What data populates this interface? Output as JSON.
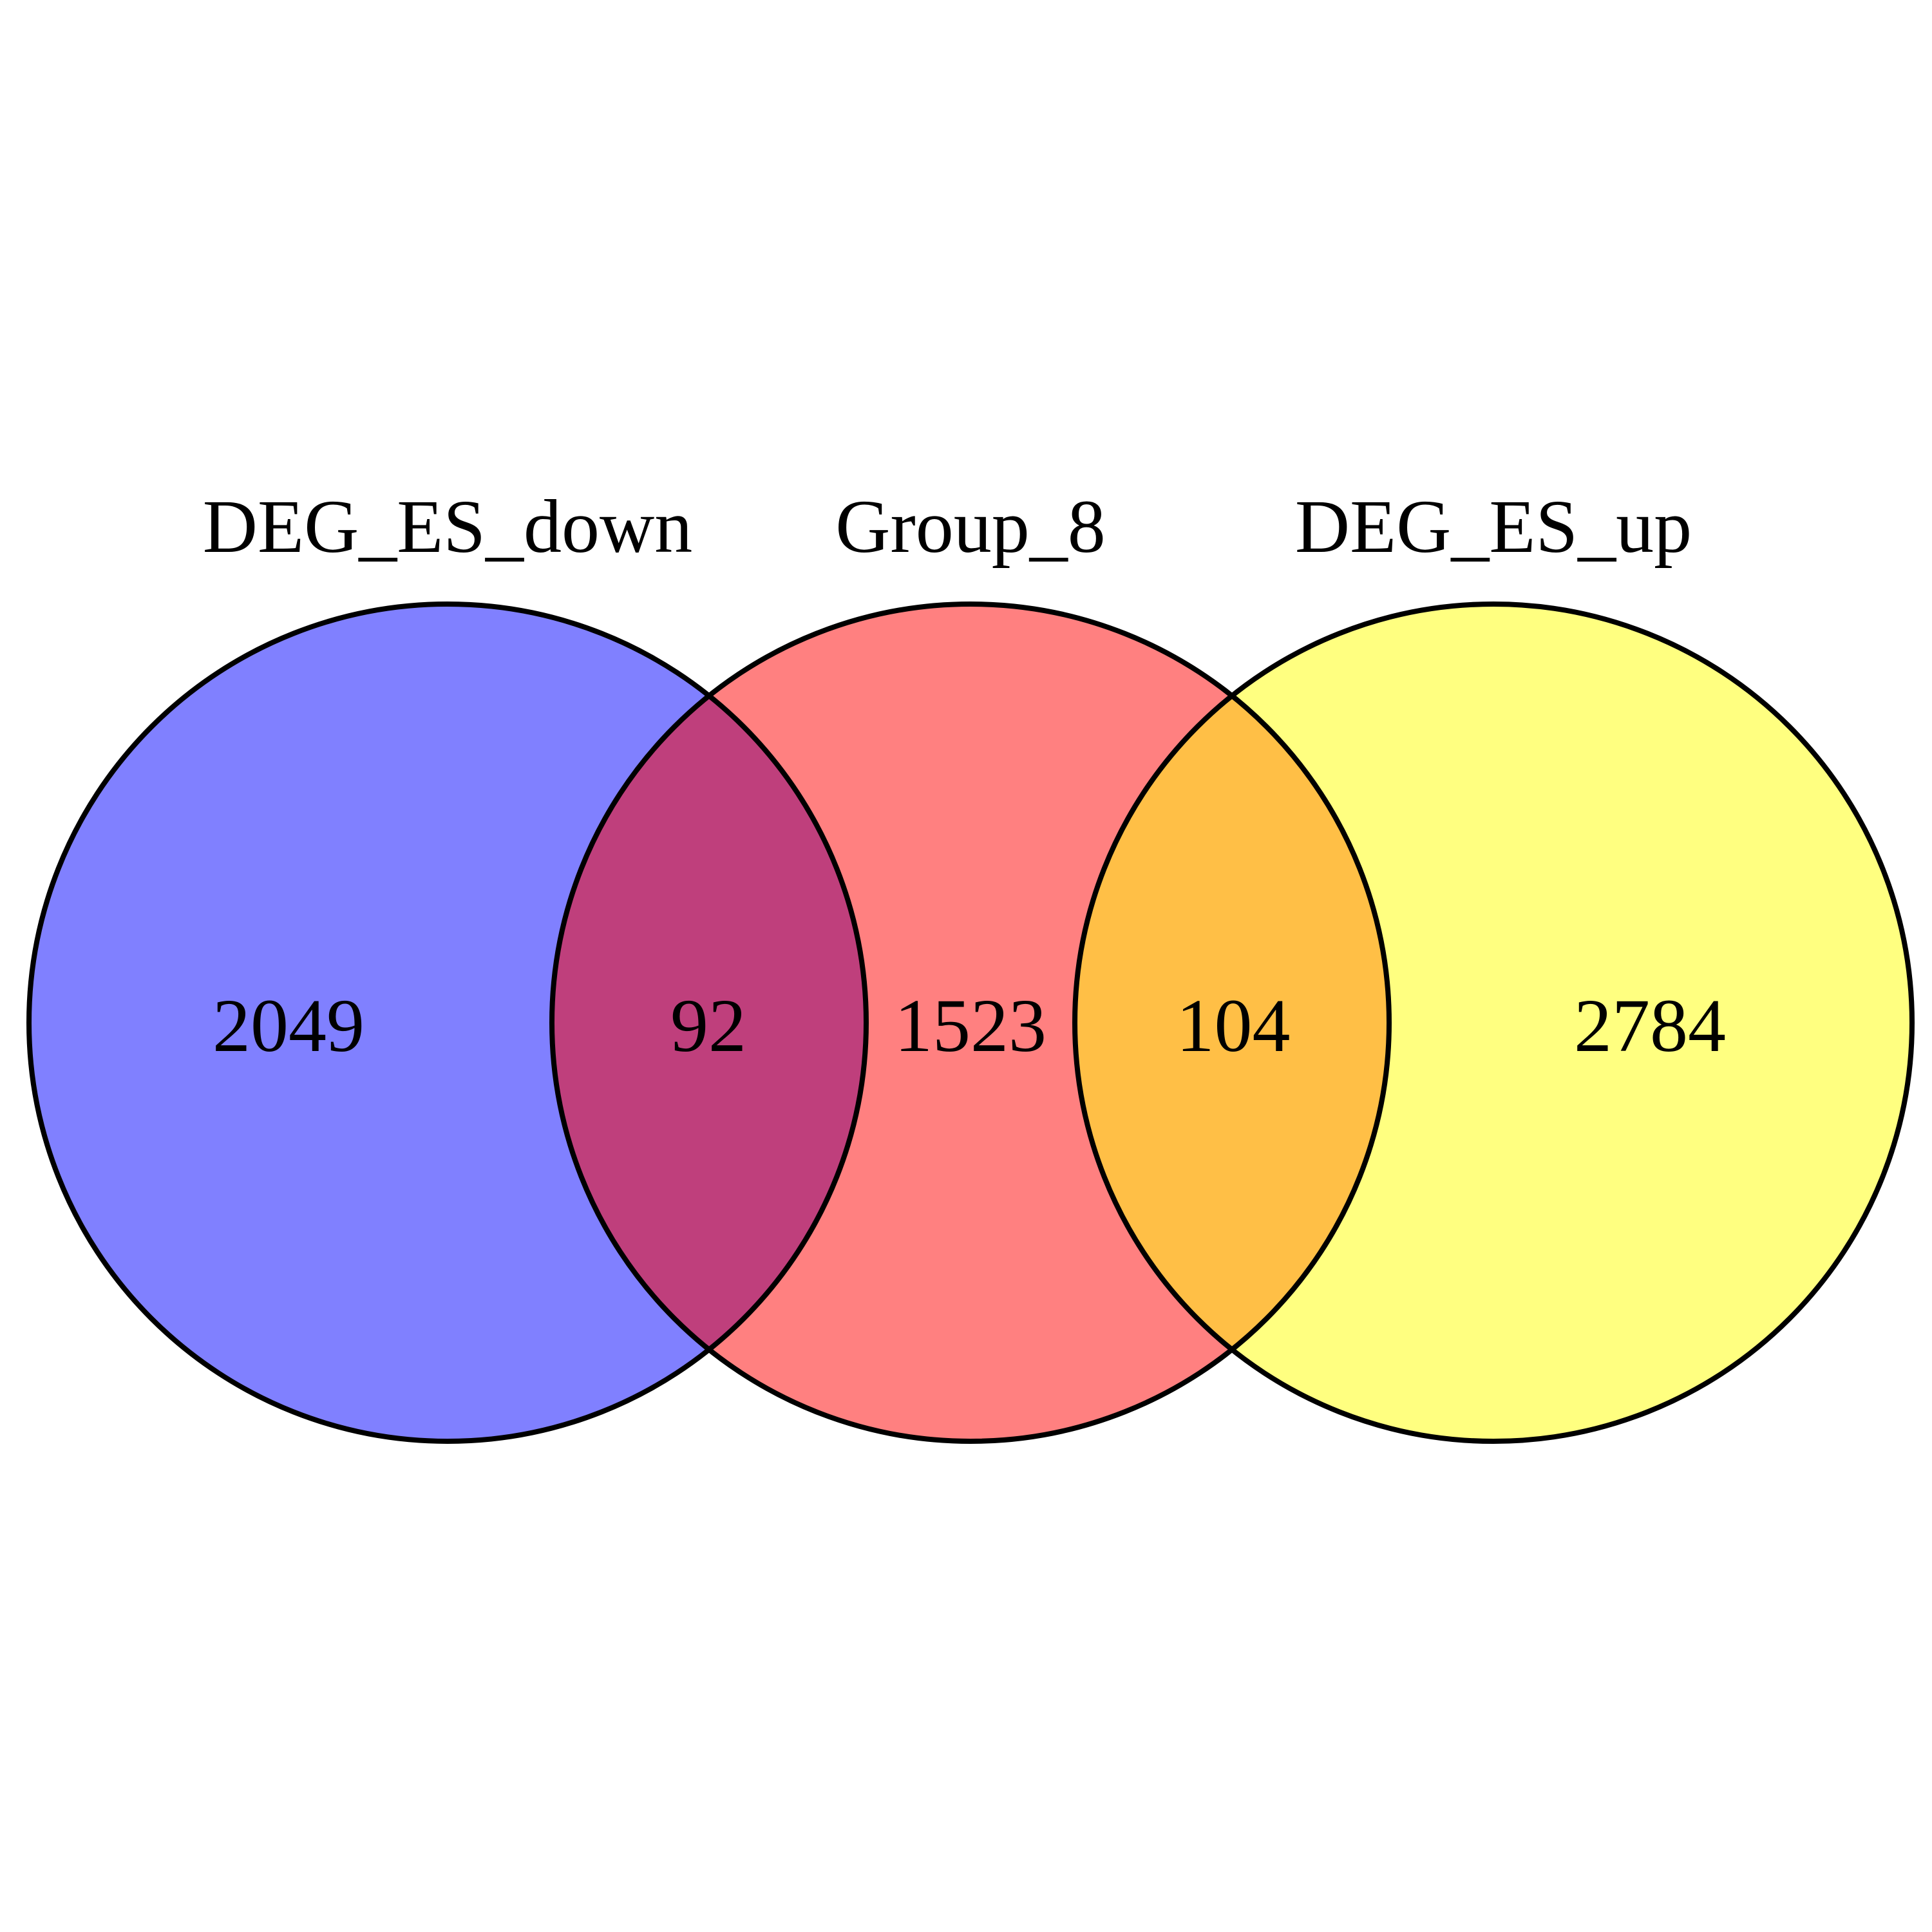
{
  "diagram": {
    "type": "venn",
    "sets": [
      {
        "name": "DEG_ES_down",
        "color": "#8080ff"
      },
      {
        "name": "Group_8",
        "color": "#ff8080"
      },
      {
        "name": "DEG_ES_up",
        "color": "#ffff80"
      }
    ],
    "overlap_colors": {
      "DEG_ES_down_Group_8": "#bf3f7c",
      "Group_8_DEG_ES_up": "#ffbf46"
    },
    "outline_color": "#000000",
    "counts": {
      "DEG_ES_down_only": "2049",
      "DEG_ES_down_and_Group_8": "92",
      "Group_8_only": "1523",
      "Group_8_and_DEG_ES_up": "104",
      "DEG_ES_up_only": "2784"
    }
  }
}
